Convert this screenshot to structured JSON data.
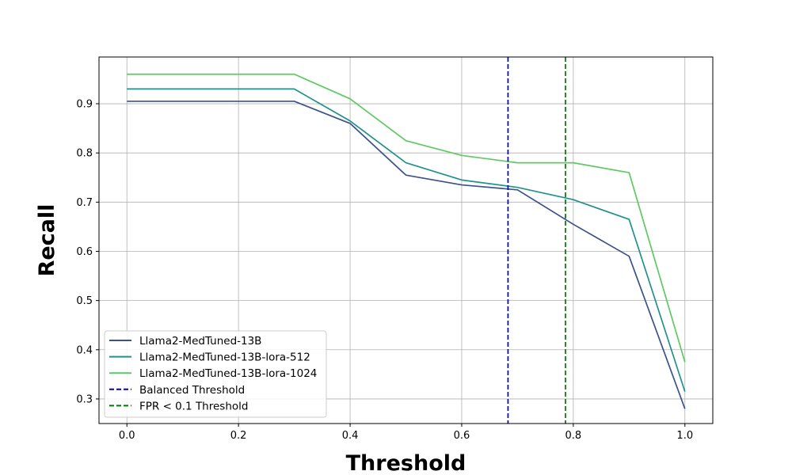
{
  "chart_data": {
    "type": "line",
    "title": "",
    "xlabel": "Threshold",
    "ylabel": "Recall",
    "xlim": [
      -0.05,
      1.05
    ],
    "ylim": [
      0.25,
      0.995
    ],
    "xticks": [
      0.0,
      0.2,
      0.4,
      0.6,
      0.8,
      1.0
    ],
    "xtick_labels": [
      "0.0",
      "0.2",
      "0.4",
      "0.6",
      "0.8",
      "1.0"
    ],
    "yticks": [
      0.3,
      0.4,
      0.5,
      0.6,
      0.7,
      0.8,
      0.9
    ],
    "ytick_labels": [
      "0.3",
      "0.4",
      "0.5",
      "0.6",
      "0.7",
      "0.8",
      "0.9"
    ],
    "grid": true,
    "legend_position": "lower-left",
    "x": [
      0.0,
      0.1,
      0.2,
      0.3,
      0.4,
      0.5,
      0.6,
      0.7,
      0.8,
      0.9,
      1.0
    ],
    "series": [
      {
        "name": "Llama2-MedTuned-13B",
        "color": "#3b528b",
        "values": [
          0.905,
          0.905,
          0.905,
          0.905,
          0.86,
          0.755,
          0.735,
          0.725,
          0.655,
          0.59,
          0.28
        ]
      },
      {
        "name": "Llama2-MedTuned-13B-lora-512",
        "color": "#21918c",
        "values": [
          0.93,
          0.93,
          0.93,
          0.93,
          0.865,
          0.78,
          0.745,
          0.73,
          0.705,
          0.665,
          0.315
        ]
      },
      {
        "name": "Llama2-MedTuned-13B-lora-1024",
        "color": "#5ec962",
        "values": [
          0.96,
          0.96,
          0.96,
          0.96,
          0.91,
          0.825,
          0.795,
          0.78,
          0.78,
          0.76,
          0.375
        ]
      }
    ],
    "thresholds": [
      {
        "name": "Balanced Threshold",
        "value": 0.683,
        "color": "#0000cc"
      },
      {
        "name": "FPR < 0.1 Threshold",
        "value": 0.786,
        "color": "#007700"
      }
    ]
  }
}
